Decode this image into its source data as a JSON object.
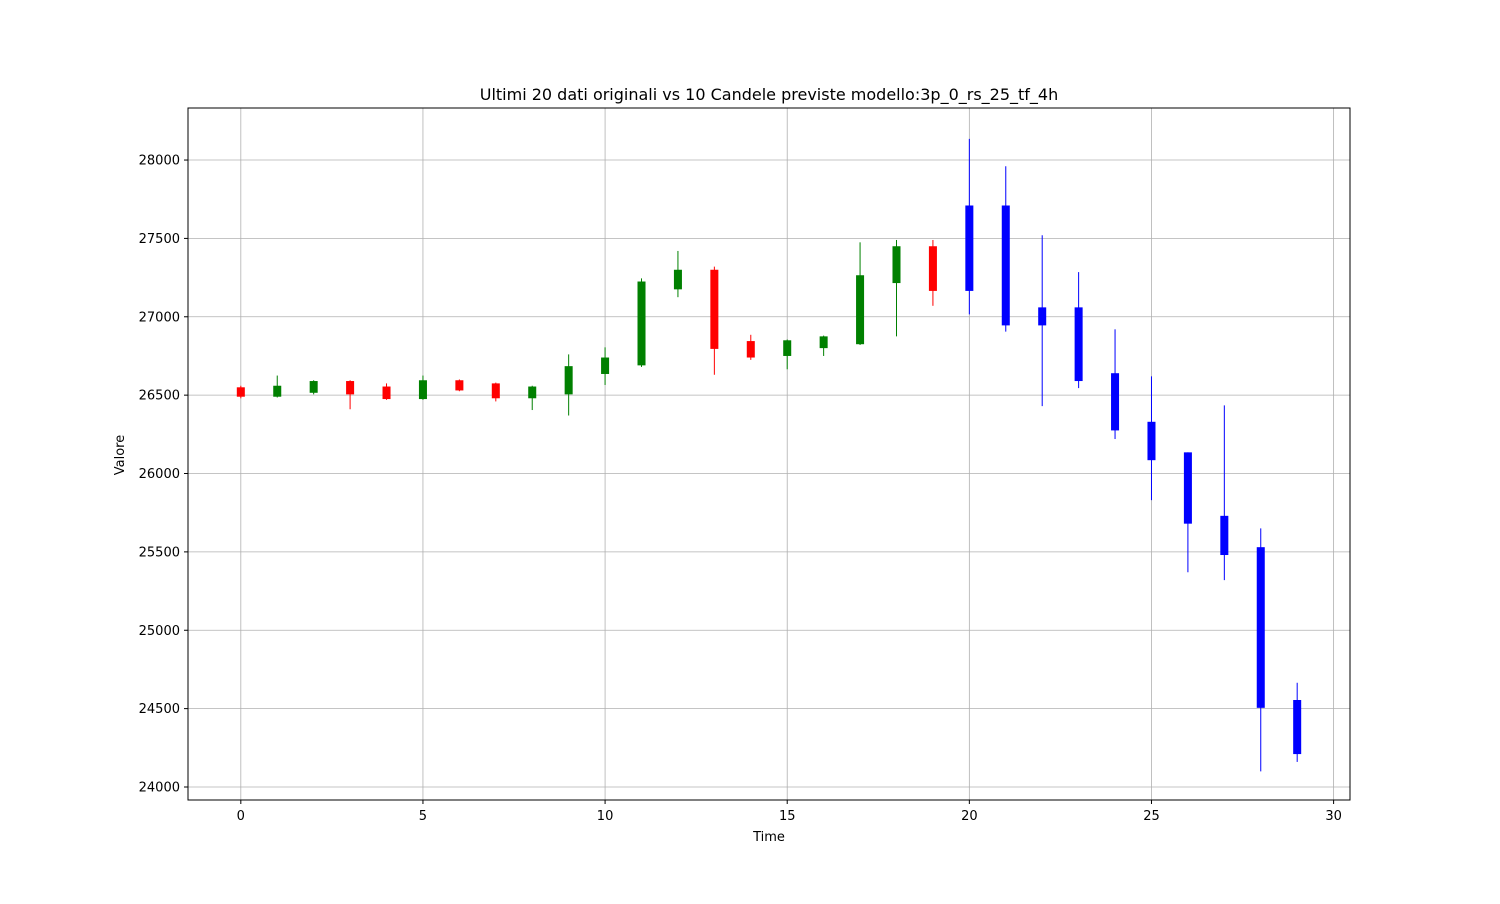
{
  "chart_data": {
    "type": "candlestick",
    "title": "Ultimi 20 dati originali vs 10 Candele previste modello:3p_0_rs_25_tf_4h",
    "x_label": "Time",
    "y_label": "Valore",
    "x": [
      0,
      1,
      2,
      3,
      4,
      5,
      6,
      7,
      8,
      9,
      10,
      11,
      12,
      13,
      14,
      15,
      16,
      17,
      18,
      19,
      20,
      21,
      22,
      23,
      24,
      25,
      26,
      27,
      28,
      29
    ],
    "open": [
      26550,
      26490,
      26515,
      26590,
      26555,
      26475,
      26595,
      26575,
      26480,
      26505,
      26635,
      26690,
      27175,
      27300,
      26845,
      26750,
      26800,
      26825,
      27215,
      27450,
      27710,
      27710,
      27060,
      27060,
      26640,
      26330,
      26135,
      25730,
      25530,
      24555
    ],
    "high": [
      26560,
      26625,
      26595,
      26595,
      26575,
      26625,
      26600,
      26580,
      26560,
      26760,
      26805,
      27245,
      27420,
      27320,
      26885,
      26855,
      26880,
      27475,
      27490,
      27490,
      28135,
      27960,
      27520,
      27285,
      26920,
      26620,
      26135,
      26435,
      25650,
      24665
    ],
    "low": [
      26480,
      26485,
      26505,
      26410,
      26470,
      26470,
      26525,
      26460,
      26405,
      26370,
      26565,
      26680,
      27125,
      26630,
      26725,
      26665,
      26750,
      26820,
      26875,
      27070,
      27015,
      26905,
      26430,
      26545,
      26220,
      25830,
      25370,
      25320,
      24100,
      24160
    ],
    "close": [
      26490,
      26560,
      26590,
      26505,
      26475,
      26595,
      26530,
      26480,
      26555,
      26685,
      26740,
      27225,
      27300,
      26795,
      26740,
      26850,
      26875,
      27265,
      27450,
      27165,
      27165,
      26945,
      26945,
      26590,
      26275,
      26085,
      25680,
      25480,
      24505,
      24210
    ],
    "colors": [
      "red",
      "green",
      "green",
      "red",
      "red",
      "green",
      "red",
      "red",
      "green",
      "green",
      "green",
      "green",
      "green",
      "red",
      "red",
      "green",
      "green",
      "green",
      "green",
      "red",
      "blue",
      "blue",
      "blue",
      "blue",
      "blue",
      "blue",
      "blue",
      "blue",
      "blue",
      "blue"
    ],
    "xlim": [
      -1.45,
      30.45
    ],
    "xticks": [
      0,
      5,
      10,
      15,
      20,
      25,
      30
    ],
    "ylim": [
      23917,
      28332
    ],
    "yticks": [
      24000,
      24500,
      25000,
      25500,
      26000,
      26500,
      27000,
      27500,
      28000
    ],
    "grid": true
  }
}
